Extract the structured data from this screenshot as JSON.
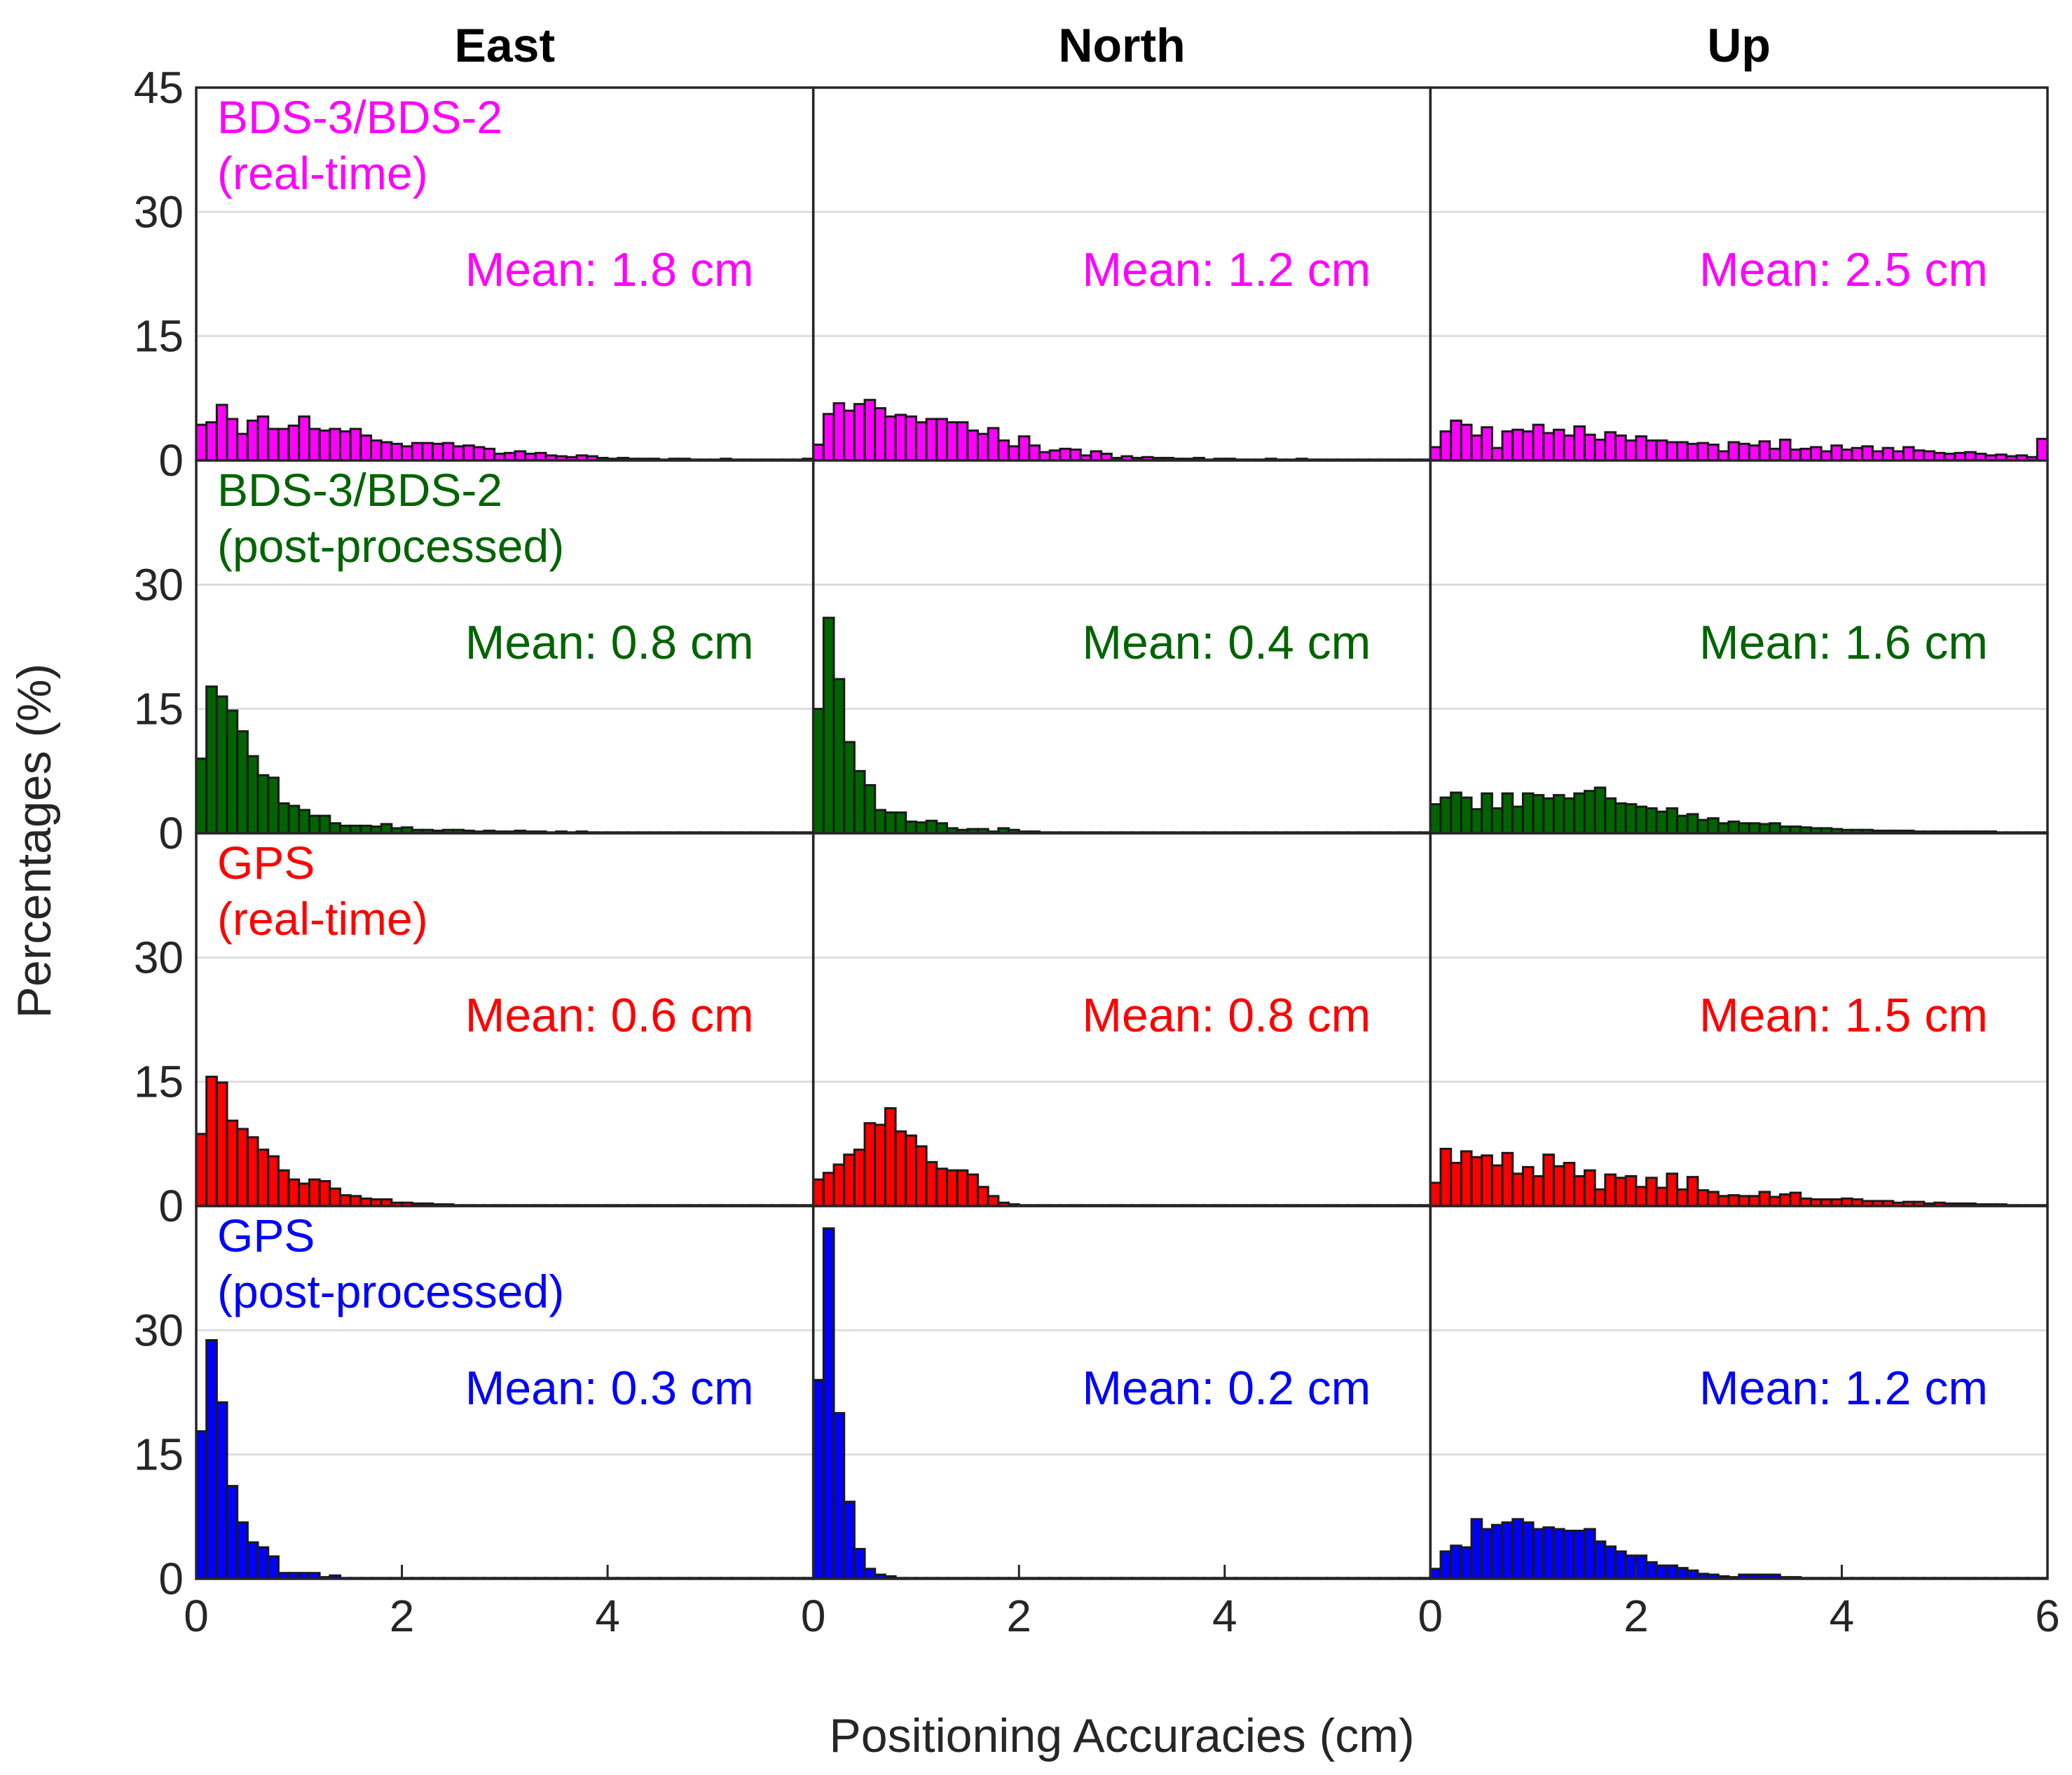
{
  "figure": {
    "ylabel": "Percentages (%)",
    "xlabel": "Positioning Accuracies (cm)"
  },
  "columns": [
    "East",
    "North",
    "Up"
  ],
  "rows": [
    {
      "line1": "BDS-3/BDS-2",
      "line2": "(real-time)",
      "color": "#ff00ff"
    },
    {
      "line1": "BDS-3/BDS-2",
      "line2": "(post-processed)",
      "color": "#006400"
    },
    {
      "line1": "GPS",
      "line2": "(real-time)",
      "color": "#ff0000"
    },
    {
      "line1": "GPS",
      "line2": "(post-processed)",
      "color": "#0000ff"
    }
  ],
  "chart_data": {
    "type": "bar",
    "subtype": "histogram-grid",
    "grid": true,
    "bin_width": 0.1,
    "xlim": [
      0,
      6
    ],
    "ylim": [
      0,
      45
    ],
    "xticks": [
      "0",
      "2",
      "4",
      "6"
    ],
    "yticks": [
      "0",
      "15",
      "30",
      "45"
    ],
    "mean_labels": [
      [
        "Mean: 1.8 cm",
        "Mean: 1.2 cm",
        "Mean: 2.5 cm"
      ],
      [
        "Mean: 0.8 cm",
        "Mean: 0.4 cm",
        "Mean: 1.6 cm"
      ],
      [
        "Mean: 0.6 cm",
        "Mean: 0.8 cm",
        "Mean: 1.5 cm"
      ],
      [
        "Mean: 0.3 cm",
        "Mean: 0.2 cm",
        "Mean: 1.2 cm"
      ]
    ],
    "panels": [
      [
        [
          4.3,
          4.6,
          6.7,
          5.0,
          3.2,
          4.8,
          5.3,
          3.8,
          3.8,
          4.2,
          5.3,
          3.8,
          3.6,
          3.8,
          3.5,
          3.8,
          3.0,
          2.4,
          2.2,
          2.0,
          1.7,
          2.1,
          2.1,
          2.0,
          2.1,
          1.7,
          1.8,
          1.6,
          1.4,
          0.8,
          0.9,
          1.1,
          0.8,
          0.9,
          0.6,
          0.5,
          0.4,
          0.6,
          0.5,
          0.3,
          0.2,
          0.3,
          0.2,
          0.2,
          0.2,
          0.1,
          0.2,
          0.2,
          0.1,
          0.1,
          0.1,
          0.2,
          0.1,
          0.1,
          0.1,
          0.1,
          0.1,
          0.1,
          0.1,
          0.2
        ],
        [
          1.9,
          5.6,
          6.9,
          6.0,
          6.8,
          7.3,
          6.3,
          5.3,
          5.5,
          5.3,
          4.6,
          5.0,
          5.0,
          4.6,
          4.6,
          3.6,
          3.2,
          3.9,
          2.4,
          1.7,
          2.9,
          1.8,
          1.0,
          1.2,
          1.4,
          1.3,
          0.6,
          1.1,
          0.8,
          0.3,
          0.5,
          0.3,
          0.4,
          0.3,
          0.3,
          0.2,
          0.2,
          0.3,
          0.1,
          0.2,
          0.2,
          0.1,
          0.1,
          0.1,
          0.2,
          0.1,
          0.1,
          0.2,
          0.1,
          0.1,
          0.1,
          0.1,
          0.1,
          0.1,
          0.1,
          0.1,
          0.1,
          0.1,
          0.1,
          0.1
        ],
        [
          1.6,
          3.5,
          4.8,
          4.3,
          3.0,
          4.0,
          1.5,
          3.5,
          3.7,
          3.5,
          4.3,
          3.3,
          3.7,
          3.0,
          4.1,
          3.1,
          2.5,
          3.4,
          3.0,
          2.4,
          2.9,
          2.4,
          2.4,
          2.2,
          2.2,
          2.0,
          2.1,
          1.9,
          1.1,
          2.2,
          2.0,
          1.8,
          2.3,
          1.4,
          2.5,
          1.3,
          1.4,
          1.6,
          1.1,
          1.8,
          1.3,
          1.5,
          1.7,
          1.1,
          1.5,
          1.1,
          1.6,
          1.2,
          1.1,
          0.9,
          0.8,
          0.9,
          1.0,
          0.8,
          0.6,
          0.7,
          0.5,
          0.6,
          0.4,
          2.6
        ]
      ],
      [
        [
          9.0,
          17.7,
          16.5,
          14.8,
          12.3,
          9.3,
          7.0,
          6.7,
          3.6,
          3.3,
          2.8,
          2.1,
          2.1,
          1.2,
          0.9,
          0.9,
          0.9,
          0.8,
          1.1,
          0.6,
          0.7,
          0.4,
          0.4,
          0.3,
          0.4,
          0.4,
          0.3,
          0.2,
          0.3,
          0.2,
          0.2,
          0.3,
          0.2,
          0.2,
          0.1,
          0.2,
          0.1,
          0.2,
          0.1,
          0.1,
          0.1,
          0.1,
          0.1,
          0.1,
          0.1,
          0.1,
          0.1,
          0.1,
          0.1,
          0.1,
          0.1,
          0.1,
          0.1,
          0.1,
          0.1,
          0.1,
          0.1,
          0.1,
          0.1,
          0.1
        ],
        [
          15.0,
          26.0,
          18.6,
          11.0,
          7.5,
          5.8,
          2.8,
          2.5,
          2.5,
          1.4,
          1.3,
          1.5,
          1.2,
          0.6,
          0.4,
          0.5,
          0.5,
          0.2,
          0.6,
          0.4,
          0.2,
          0.2,
          0.1,
          0.1,
          0.1,
          0.1,
          0.1,
          0.1,
          0.1,
          0.1,
          0.1,
          0.1,
          0.1,
          0.1,
          0.1,
          0.1,
          0.1,
          0.1,
          0.1,
          0.1,
          0.1,
          0.1,
          0.1,
          0.1,
          0.1,
          0.1,
          0.1,
          0.1,
          0.1,
          0.1,
          0.1,
          0.1,
          0.1,
          0.1,
          0.1,
          0.1,
          0.1,
          0.1,
          0.1,
          0.1
        ],
        [
          3.5,
          4.3,
          4.9,
          4.3,
          2.9,
          4.8,
          3.0,
          4.8,
          3.2,
          4.8,
          4.6,
          4.2,
          4.6,
          4.2,
          4.8,
          5.1,
          5.5,
          4.2,
          3.6,
          3.5,
          3.2,
          3.0,
          2.6,
          3.0,
          2.1,
          2.3,
          1.6,
          1.8,
          1.2,
          1.4,
          1.2,
          1.2,
          1.1,
          1.2,
          0.8,
          0.8,
          0.7,
          0.6,
          0.6,
          0.5,
          0.4,
          0.4,
          0.4,
          0.3,
          0.3,
          0.3,
          0.3,
          0.2,
          0.2,
          0.2,
          0.2,
          0.2,
          0.2,
          0.2,
          0.2,
          0.1,
          0.1,
          0.1,
          0.1,
          0.1
        ]
      ],
      [
        [
          8.7,
          15.6,
          14.9,
          10.3,
          9.3,
          8.3,
          6.8,
          6.0,
          4.3,
          3.2,
          2.7,
          3.2,
          3.0,
          2.1,
          1.3,
          1.2,
          0.9,
          0.8,
          0.8,
          0.4,
          0.4,
          0.3,
          0.3,
          0.2,
          0.2,
          0.1,
          0.1,
          0.1,
          0.1,
          0.1,
          0.1,
          0.1,
          0.1,
          0.1,
          0.1,
          0.1,
          0.1,
          0.1,
          0.1,
          0.1,
          0.1,
          0.1,
          0.1,
          0.1,
          0.1,
          0.1,
          0.1,
          0.1,
          0.1,
          0.1,
          0.1,
          0.1,
          0.1,
          0.1,
          0.1,
          0.1,
          0.1,
          0.1,
          0.1,
          0.1
        ],
        [
          3.2,
          4.0,
          5.0,
          6.2,
          6.8,
          10.0,
          9.8,
          11.8,
          9.0,
          8.5,
          7.2,
          5.3,
          4.5,
          4.3,
          4.3,
          3.8,
          2.3,
          1.2,
          0.4,
          0.2,
          0.1,
          0.1,
          0.1,
          0.1,
          0.1,
          0.1,
          0.1,
          0.1,
          0.1,
          0.1,
          0.1,
          0.1,
          0.1,
          0.1,
          0.1,
          0.1,
          0.1,
          0.1,
          0.1,
          0.1,
          0.1,
          0.1,
          0.1,
          0.1,
          0.1,
          0.1,
          0.1,
          0.1,
          0.1,
          0.1,
          0.1,
          0.1,
          0.1,
          0.1,
          0.1,
          0.1,
          0.1,
          0.1,
          0.1,
          0.1
        ],
        [
          2.8,
          6.9,
          5.2,
          6.6,
          5.9,
          6.1,
          4.9,
          6.4,
          3.9,
          4.7,
          3.6,
          6.2,
          4.8,
          5.2,
          3.6,
          4.3,
          2.0,
          3.8,
          3.4,
          3.6,
          2.3,
          3.4,
          2.2,
          3.9,
          2.0,
          3.5,
          1.9,
          1.7,
          1.2,
          1.3,
          1.2,
          1.2,
          1.7,
          1.1,
          1.4,
          1.6,
          0.9,
          0.8,
          0.8,
          0.8,
          0.9,
          0.8,
          0.6,
          0.6,
          0.6,
          0.4,
          0.5,
          0.5,
          0.3,
          0.4,
          0.3,
          0.3,
          0.3,
          0.2,
          0.2,
          0.2,
          0.1,
          0.1,
          0.1,
          0.1
        ]
      ],
      [
        [
          17.8,
          28.8,
          21.3,
          11.2,
          6.8,
          4.4,
          3.8,
          2.7,
          0.7,
          0.7,
          0.7,
          0.7,
          0.2,
          0.4,
          0.1,
          0.1,
          0.1,
          0.1,
          0.1,
          0.1,
          0.1,
          0.1,
          0.1,
          0.1,
          0.1,
          0.1,
          0.1,
          0.1,
          0.1,
          0.1,
          0.1,
          0.1,
          0.1,
          0.1,
          0.1,
          0.1,
          0.1,
          0.1,
          0.1,
          0.1,
          0.1,
          0.1,
          0.1,
          0.1,
          0.1,
          0.1,
          0.1,
          0.1,
          0.1,
          0.1,
          0.1,
          0.1,
          0.1,
          0.1,
          0.1,
          0.1,
          0.1,
          0.1,
          0.1,
          0.1
        ],
        [
          24.0,
          42.3,
          20.0,
          9.3,
          3.6,
          1.2,
          0.5,
          0.3,
          0.1,
          0.1,
          0.1,
          0.1,
          0.1,
          0.1,
          0.1,
          0.1,
          0.1,
          0.1,
          0.1,
          0.1,
          0.1,
          0.1,
          0.1,
          0.1,
          0.1,
          0.1,
          0.1,
          0.1,
          0.1,
          0.1,
          0.1,
          0.1,
          0.1,
          0.1,
          0.1,
          0.1,
          0.1,
          0.1,
          0.1,
          0.1,
          0.1,
          0.1,
          0.1,
          0.1,
          0.1,
          0.1,
          0.1,
          0.1,
          0.1,
          0.1,
          0.1,
          0.1,
          0.1,
          0.1,
          0.1,
          0.1,
          0.1,
          0.1,
          0.1,
          0.1
        ],
        [
          1.2,
          3.3,
          4.0,
          3.8,
          7.2,
          6.0,
          6.5,
          6.8,
          7.2,
          6.8,
          6.0,
          6.2,
          6.0,
          5.8,
          5.8,
          6.0,
          4.5,
          3.9,
          3.3,
          2.8,
          2.8,
          2.0,
          1.6,
          1.6,
          1.3,
          1.0,
          0.6,
          0.5,
          0.3,
          0.2,
          0.5,
          0.5,
          0.5,
          0.5,
          0.2,
          0.2,
          0.1,
          0.1,
          0.1,
          0.1,
          0.1,
          0.1,
          0.1,
          0.1,
          0.1,
          0.1,
          0.1,
          0.1,
          0.1,
          0.1,
          0.1,
          0.1,
          0.1,
          0.1,
          0.1,
          0.1,
          0.1,
          0.1,
          0.1,
          0.1
        ]
      ]
    ]
  }
}
